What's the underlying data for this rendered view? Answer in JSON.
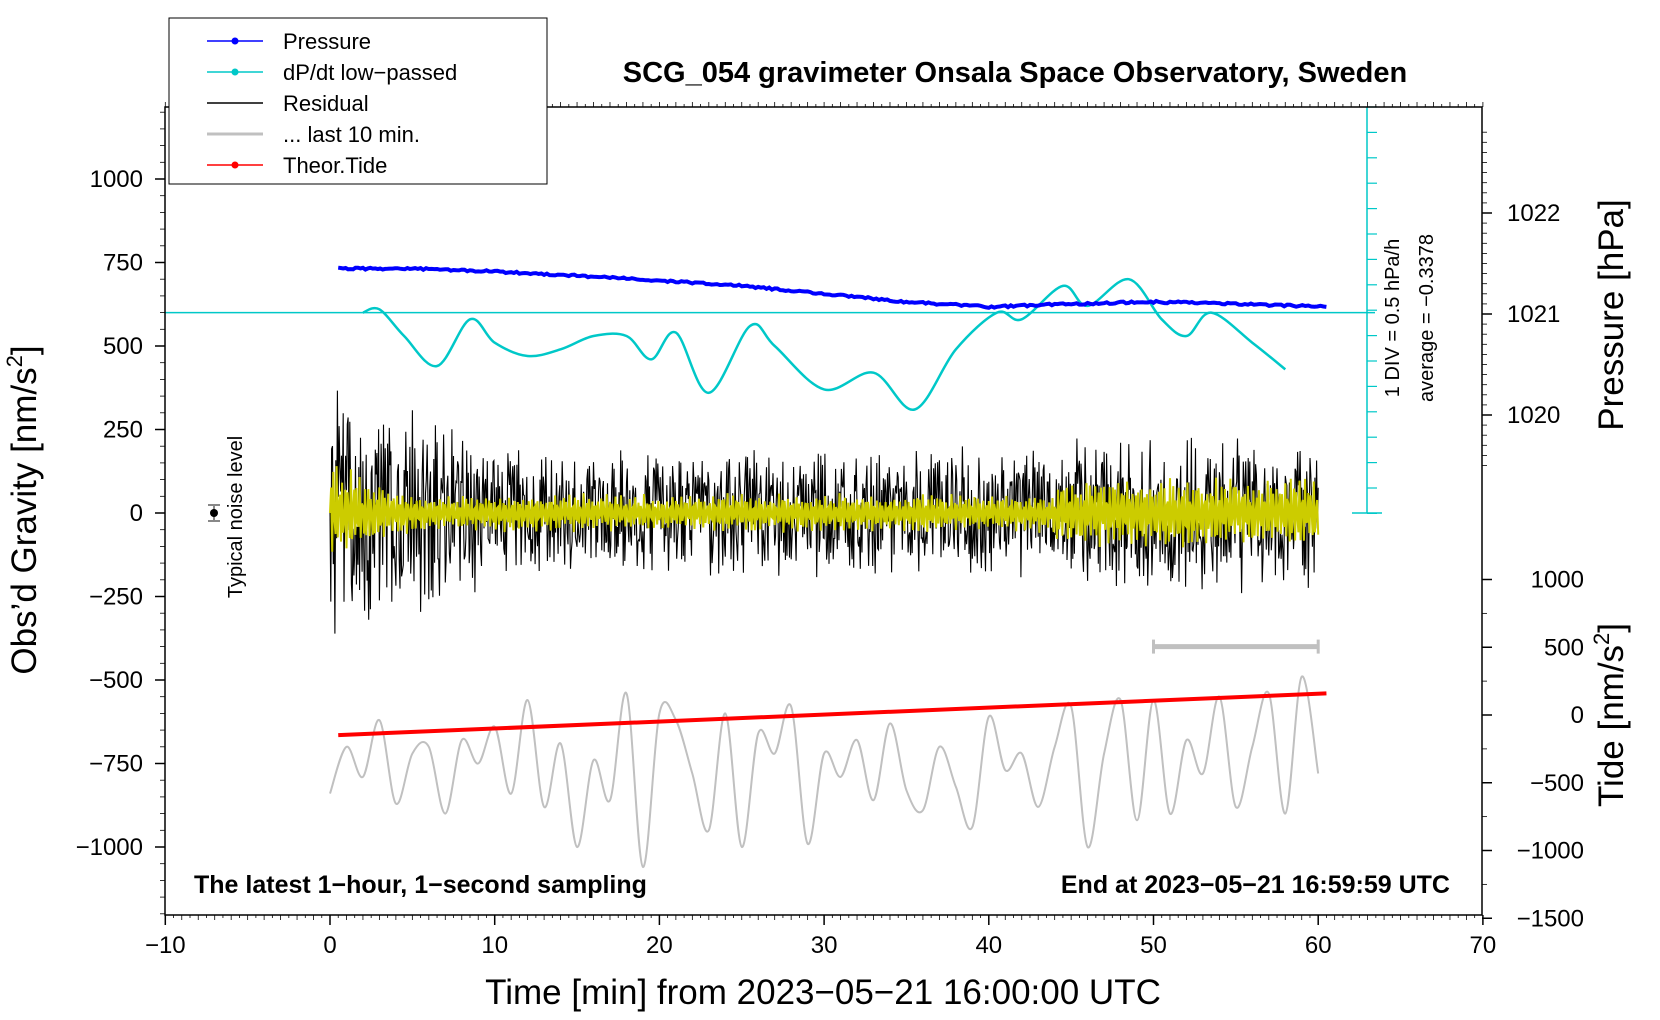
{
  "chart_data": {
    "type": "line",
    "title": "SCG_054 gravimeter Onsala Space Observatory, Sweden",
    "xlabel": "Time [min] from 2023−05−21 16:00:00 UTC",
    "ylabel_left": "Obs’d Gravity [nm/s",
    "ylabel_left_sup": "2",
    "ylabel_left_end": "]",
    "ylabel_right_pressure": "Pressure [hPa]",
    "ylabel_right_tide": "Tide [nm/s",
    "ylabel_right_tide_sup": "2",
    "ylabel_right_tide_end": "]",
    "xlim": [
      -10,
      70
    ],
    "ylim": [
      -1200,
      1200
    ],
    "x_ticks": [
      "−10",
      "0",
      "10",
      "20",
      "30",
      "40",
      "50",
      "60",
      "70"
    ],
    "y_ticks_left": [
      "1000",
      "750",
      "500",
      "250",
      "0",
      "−250",
      "−500",
      "−750",
      "−1000"
    ],
    "y_tick_values_left": [
      1000,
      750,
      500,
      250,
      0,
      -250,
      -500,
      -750,
      -1000
    ],
    "pressure_ticks": [
      "1022",
      "1021",
      "1020"
    ],
    "pressure_tick_values": [
      1022,
      1021,
      1020
    ],
    "tide_ticks": [
      "1000",
      "500",
      "0",
      "−500",
      "−1000",
      "−1500"
    ],
    "tide_tick_values": [
      1000,
      500,
      0,
      -500,
      -1000,
      -1500
    ],
    "legend": [
      {
        "label": "Pressure",
        "color": "#0000ff",
        "marker": true
      },
      {
        "label": "dP/dt low−passed",
        "color": "#00c8c8",
        "marker": true
      },
      {
        "label": "Residual",
        "color": "#000000",
        "marker": false
      },
      {
        "label": "... last 10 min.",
        "color": "#c0c0c0",
        "marker": false
      },
      {
        "label": "Theor.Tide",
        "color": "#ff0000",
        "marker": true
      }
    ],
    "noise_label": "Typical noise level",
    "dpdt_scale_label": "1 DIV = 0.5 hPa/h",
    "dpdt_average_label": "average = −0.3378",
    "bottom_left_note": "The latest 1−hour, 1−second sampling",
    "bottom_right_note": "End at 2023−05−21 16:59:59 UTC",
    "last10_bar_range_min": [
      50,
      60
    ],
    "series": [
      {
        "name": "Pressure",
        "unit": "hPa",
        "color": "#0000ff",
        "x": [
          0.5,
          5,
          10,
          15,
          20,
          25,
          30,
          35,
          40,
          45,
          50,
          55,
          60.5
        ],
        "values": [
          1021.45,
          1021.45,
          1021.42,
          1021.38,
          1021.33,
          1021.28,
          1021.2,
          1021.12,
          1021.07,
          1021.1,
          1021.12,
          1021.1,
          1021.07
        ]
      },
      {
        "name": "dP/dt low−passed",
        "unit": "gravity-axis",
        "color": "#00c8c8",
        "x": [
          2,
          3,
          4.5,
          6.5,
          8.5,
          10,
          12,
          14,
          16,
          18,
          19.5,
          21,
          23,
          25.5,
          27,
          30,
          33,
          35.5,
          38,
          40.5,
          42,
          44.5,
          46,
          48.5,
          50.5,
          52,
          53.5,
          56,
          58
        ],
        "values": [
          600,
          610,
          530,
          440,
          580,
          510,
          470,
          490,
          530,
          530,
          460,
          540,
          360,
          560,
          500,
          370,
          420,
          310,
          490,
          600,
          580,
          680,
          620,
          700,
          580,
          530,
          600,
          510,
          430
        ]
      },
      {
        "name": "Residual",
        "unit": "nm/s2",
        "color": "#000000",
        "x_range": [
          0,
          60
        ],
        "envelope_approx": 450
      },
      {
        "name": "Filtered residual",
        "unit": "nm/s2",
        "color": "#cccc00",
        "x_range": [
          0,
          60
        ],
        "envelope_approx": 150
      },
      {
        "name": "... last 10 min.",
        "unit": "nm/s2",
        "color": "#c0c0c0",
        "x": [
          0,
          1,
          2,
          3,
          4,
          5,
          6,
          7,
          8,
          9,
          10,
          11,
          12,
          13,
          14,
          15,
          16,
          17,
          18,
          19,
          20,
          21,
          22,
          23,
          24,
          25,
          26,
          27,
          28,
          29,
          30,
          31,
          32,
          33,
          34,
          35,
          36,
          37,
          38,
          39,
          40,
          41,
          42,
          43,
          44,
          45,
          46,
          47,
          48,
          49,
          50,
          51,
          52,
          53,
          54,
          55,
          56,
          57,
          58,
          59,
          60
        ],
        "values": [
          -840,
          -700,
          -790,
          -620,
          -870,
          -720,
          -700,
          -900,
          -680,
          -750,
          -640,
          -840,
          -560,
          -880,
          -690,
          -1000,
          -740,
          -860,
          -540,
          -1060,
          -600,
          -620,
          -780,
          -950,
          -600,
          -1000,
          -660,
          -720,
          -580,
          -990,
          -720,
          -790,
          -680,
          -860,
          -630,
          -830,
          -890,
          -700,
          -820,
          -940,
          -610,
          -770,
          -720,
          -880,
          -700,
          -580,
          -1000,
          -720,
          -560,
          -920,
          -560,
          -900,
          -680,
          -780,
          -550,
          -880,
          -700,
          -540,
          -900,
          -490,
          -780
        ]
      },
      {
        "name": "Theor.Tide",
        "unit": "nm/s2",
        "color": "#ff0000",
        "x": [
          0.5,
          60.5
        ],
        "values": [
          -665,
          -540
        ]
      }
    ]
  }
}
